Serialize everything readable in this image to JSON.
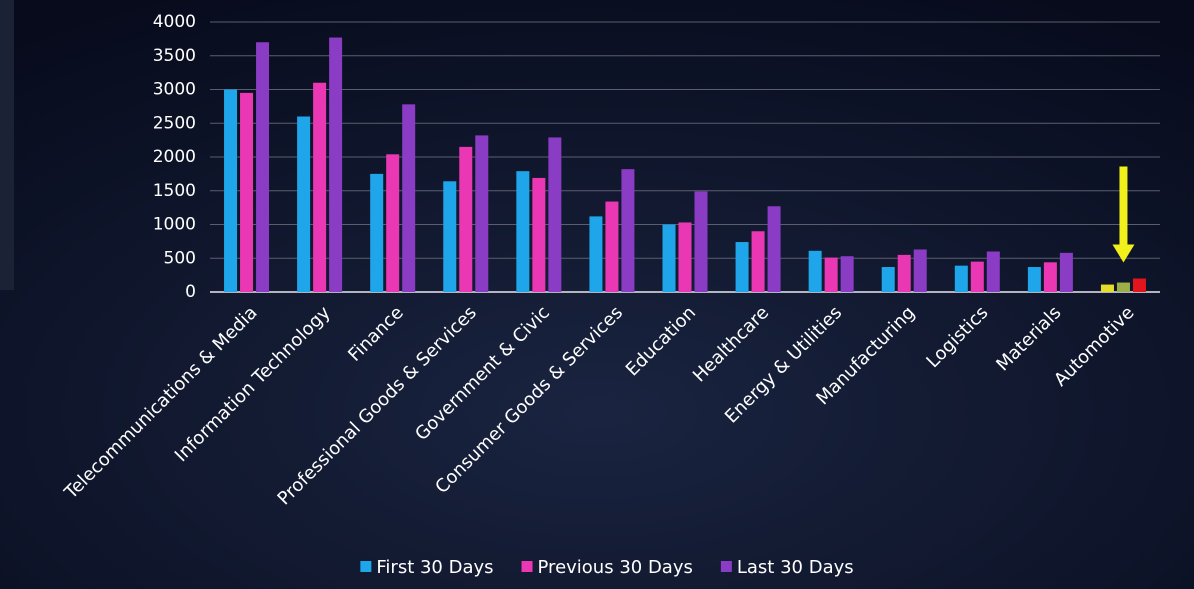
{
  "chart_data": {
    "type": "bar",
    "categories": [
      "Telecommunications & Media",
      "Information Technology",
      "Finance",
      "Professional Goods & Services",
      "Government & Civic",
      "Consumer Goods & Services",
      "Education",
      "Healthcare",
      "Energy & Utilities",
      "Manufacturing",
      "Logistics",
      "Materials",
      "Automotive"
    ],
    "series": [
      {
        "name": "First 30 Days",
        "color": "#1fa6ea",
        "values": [
          3000,
          2600,
          1750,
          1640,
          1790,
          1120,
          1000,
          740,
          610,
          370,
          390,
          370,
          110
        ]
      },
      {
        "name": "Previous 30 Days",
        "color": "#ea38b4",
        "values": [
          2950,
          3100,
          2040,
          2150,
          1690,
          1340,
          1030,
          900,
          510,
          550,
          450,
          440,
          140
        ]
      },
      {
        "name": "Last 30 Days",
        "color": "#8a3cc4",
        "values": [
          3700,
          3770,
          2780,
          2320,
          2290,
          1820,
          1490,
          1270,
          530,
          630,
          600,
          580,
          200
        ]
      }
    ],
    "highlight_category": "Automotive",
    "highlight_colors": [
      "#e6dc2a",
      "#9cae48",
      "#e2141c"
    ],
    "highlight_arrow_color": "#f2f01a",
    "ylim": [
      0,
      4000
    ],
    "yticks": [
      0,
      500,
      1000,
      1500,
      2000,
      2500,
      3000,
      3500,
      4000
    ],
    "grid": true,
    "legend": "bottom"
  }
}
